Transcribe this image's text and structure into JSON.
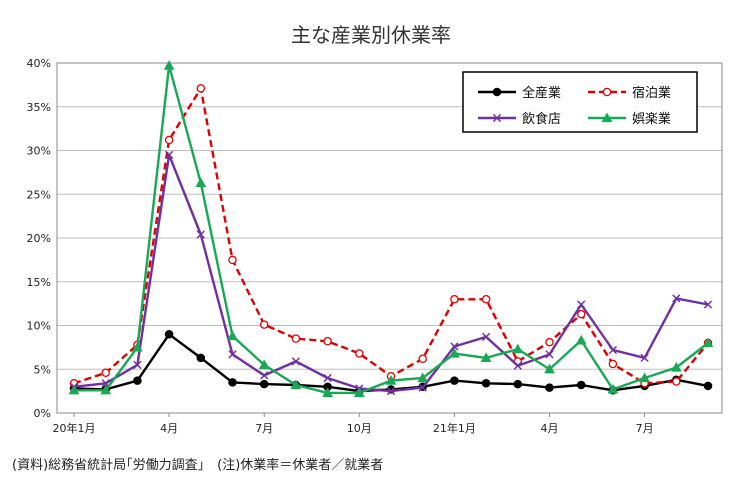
{
  "chart_data": {
    "type": "line",
    "title": "主な産業別休業率",
    "x_tick_labels": [
      "20年1月",
      "4月",
      "7月",
      "10月",
      "21年1月",
      "4月",
      "7月"
    ],
    "ylim": [
      0,
      40
    ],
    "y_tick_labels": [
      "0%",
      "5%",
      "10%",
      "15%",
      "20%",
      "25%",
      "30%",
      "35%",
      "40%"
    ],
    "grid": true,
    "legend_position": "top-right",
    "series": [
      {
        "name": "全産業",
        "color": "#000000",
        "marker": "circle-filled",
        "dash": false,
        "values": [
          2.8,
          2.7,
          3.7,
          9.0,
          6.3,
          3.5,
          3.3,
          3.2,
          3.0,
          2.5,
          2.7,
          3.0,
          3.7,
          3.4,
          3.3,
          2.9,
          3.2,
          2.6,
          3.1,
          3.8,
          3.1
        ]
      },
      {
        "name": "宿泊業",
        "color": "#dd0000",
        "marker": "circle-open",
        "dash": true,
        "values": [
          3.4,
          4.6,
          7.8,
          31.2,
          37.1,
          17.5,
          10.1,
          8.5,
          8.2,
          6.8,
          4.2,
          6.2,
          13.0,
          13.0,
          5.9,
          8.1,
          11.3,
          5.6,
          3.4,
          3.6,
          8.0
        ]
      },
      {
        "name": "飲食店",
        "color": "#7030a0",
        "marker": "x",
        "dash": false,
        "values": [
          3.0,
          3.4,
          5.5,
          29.5,
          20.4,
          6.7,
          4.3,
          5.9,
          4.0,
          2.8,
          2.5,
          2.9,
          7.6,
          8.7,
          5.4,
          6.7,
          12.4,
          7.2,
          6.3,
          13.1,
          12.4
        ]
      },
      {
        "name": "娯楽業",
        "color": "#19a855",
        "marker": "triangle",
        "dash": false,
        "values": [
          2.6,
          2.6,
          7.5,
          39.7,
          26.3,
          8.8,
          5.5,
          3.2,
          2.3,
          2.3,
          3.7,
          4.0,
          6.8,
          6.3,
          7.3,
          5.0,
          8.3,
          2.7,
          4.0,
          5.2,
          8.0
        ]
      }
    ]
  },
  "footnote": "(資料)総務省統計局｢労働力調査｣　(注)休業率＝休業者／就業者"
}
